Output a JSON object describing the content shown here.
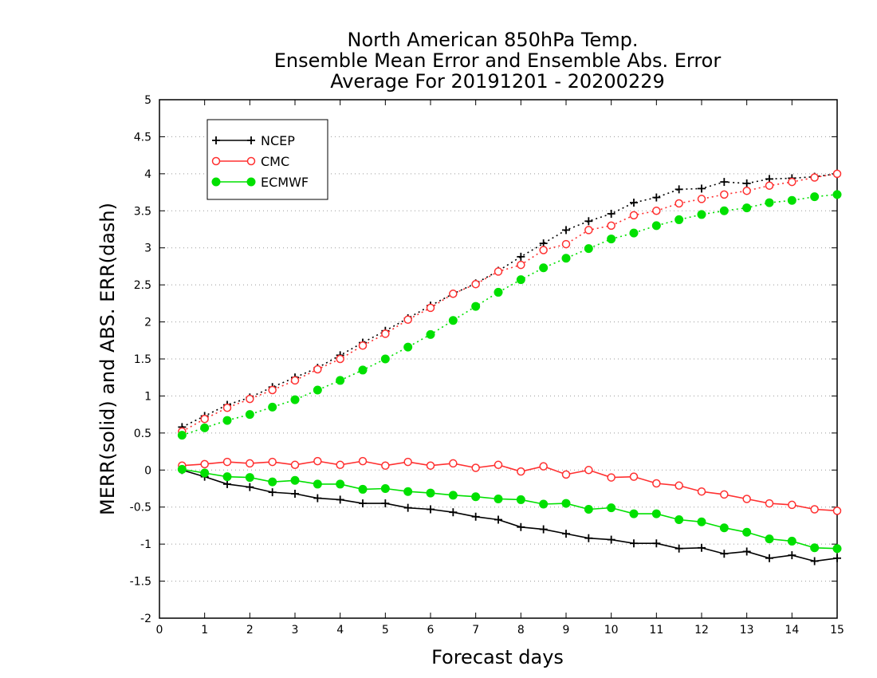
{
  "chart_data": {
    "type": "line",
    "title_lines": [
      "North American 850hPa Temp.",
      "Ensemble Mean Error and Ensemble Abs. Error",
      "Average For 20191201 - 20200229"
    ],
    "xlabel": "Forecast days",
    "ylabel": "MERR(solid) and ABS. ERR(dash)",
    "xlim": [
      0,
      15
    ],
    "ylim": [
      -2,
      5
    ],
    "x_ticks": [
      "0",
      "1",
      "2",
      "3",
      "4",
      "5",
      "6",
      "7",
      "8",
      "9",
      "10",
      "11",
      "12",
      "13",
      "14",
      "15"
    ],
    "y_ticks": [
      "-2",
      "-1.5",
      "-1",
      "-0.5",
      "0",
      "0.5",
      "1",
      "1.5",
      "2",
      "2.5",
      "3",
      "3.5",
      "4",
      "4.5",
      "5"
    ],
    "grid": "horizontal dotted",
    "legend_position": "top-left",
    "x": [
      0.5,
      1,
      1.5,
      2,
      2.5,
      3,
      3.5,
      4,
      4.5,
      5,
      5.5,
      6,
      6.5,
      7,
      7.5,
      8,
      8.5,
      9,
      9.5,
      10,
      10.5,
      11,
      11.5,
      12,
      12.5,
      13,
      13.5,
      14,
      14.5,
      15
    ],
    "series": [
      {
        "name": "NCEP",
        "color": "#000000",
        "marker": "plus",
        "abs_error": [
          0.58,
          0.73,
          0.88,
          0.98,
          1.12,
          1.25,
          1.38,
          1.55,
          1.72,
          1.88,
          2.05,
          2.22,
          2.38,
          2.52,
          2.69,
          2.88,
          3.06,
          3.24,
          3.36,
          3.46,
          3.61,
          3.68,
          3.79,
          3.8,
          3.89,
          3.87,
          3.93,
          3.94,
          3.96,
          4.0
        ],
        "mean_error": [
          0.0,
          -0.09,
          -0.19,
          -0.23,
          -0.3,
          -0.32,
          -0.38,
          -0.4,
          -0.45,
          -0.45,
          -0.51,
          -0.53,
          -0.57,
          -0.63,
          -0.67,
          -0.77,
          -0.8,
          -0.86,
          -0.92,
          -0.94,
          -0.99,
          -0.99,
          -1.06,
          -1.05,
          -1.13,
          -1.1,
          -1.19,
          -1.15,
          -1.23,
          -1.19
        ]
      },
      {
        "name": "CMC",
        "color": "#ff3030",
        "marker": "open-circle",
        "abs_error": [
          0.52,
          0.69,
          0.84,
          0.96,
          1.08,
          1.21,
          1.36,
          1.5,
          1.68,
          1.84,
          2.03,
          2.19,
          2.38,
          2.51,
          2.68,
          2.77,
          2.97,
          3.05,
          3.24,
          3.3,
          3.44,
          3.5,
          3.6,
          3.66,
          3.72,
          3.77,
          3.84,
          3.89,
          3.95,
          4.0
        ],
        "mean_error": [
          0.06,
          0.08,
          0.11,
          0.09,
          0.11,
          0.07,
          0.12,
          0.07,
          0.12,
          0.06,
          0.11,
          0.06,
          0.09,
          0.03,
          0.07,
          -0.02,
          0.05,
          -0.06,
          0.0,
          -0.1,
          -0.09,
          -0.18,
          -0.21,
          -0.29,
          -0.33,
          -0.39,
          -0.45,
          -0.47,
          -0.53,
          -0.55
        ]
      },
      {
        "name": "ECMWF",
        "color": "#00e000",
        "marker": "filled-circle",
        "abs_error": [
          0.47,
          0.57,
          0.67,
          0.75,
          0.85,
          0.95,
          1.08,
          1.21,
          1.35,
          1.5,
          1.66,
          1.83,
          2.02,
          2.21,
          2.4,
          2.57,
          2.73,
          2.86,
          2.99,
          3.12,
          3.2,
          3.3,
          3.38,
          3.45,
          3.5,
          3.54,
          3.61,
          3.64,
          3.69,
          3.72
        ],
        "mean_error": [
          0.01,
          -0.04,
          -0.09,
          -0.1,
          -0.16,
          -0.14,
          -0.19,
          -0.19,
          -0.26,
          -0.25,
          -0.29,
          -0.31,
          -0.34,
          -0.36,
          -0.39,
          -0.4,
          -0.46,
          -0.45,
          -0.53,
          -0.51,
          -0.59,
          -0.59,
          -0.67,
          -0.7,
          -0.78,
          -0.84,
          -0.93,
          -0.96,
          -1.05,
          -1.06
        ]
      }
    ]
  }
}
